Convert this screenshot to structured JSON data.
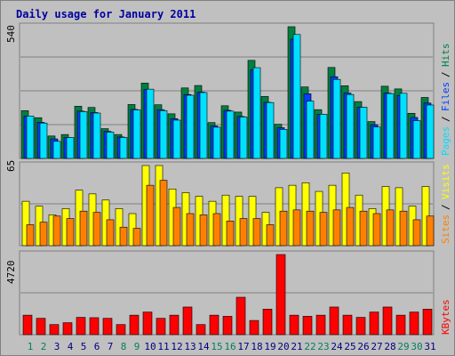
{
  "title": "Daily usage for January 2011",
  "colors": {
    "background": "#C0C0C0",
    "title": "#0000A0",
    "hits": "#008040",
    "files": "#0040FF",
    "pages": "#00E0FF",
    "visits": "#FFFF00",
    "sites": "#FF8000",
    "kbytes": "#FF0000",
    "weekend_day_label": "#00805C",
    "weekday_day_label": "#000080",
    "gridline": "#808080"
  },
  "chart_data": [
    {
      "type": "bar",
      "panel": "top",
      "ymax_label": "540",
      "legend": [
        "Pages",
        "Files",
        "Hits"
      ],
      "categories": [
        "1",
        "2",
        "3",
        "4",
        "5",
        "6",
        "7",
        "8",
        "9",
        "10",
        "11",
        "12",
        "13",
        "14",
        "15",
        "16",
        "17",
        "18",
        "19",
        "20",
        "21",
        "22",
        "23",
        "24",
        "25",
        "26",
        "27",
        "28",
        "29",
        "30",
        "31"
      ],
      "series": [
        {
          "name": "Hits",
          "color": "#008040",
          "values": [
            196,
            167,
            92,
            98,
            214,
            209,
            122,
            98,
            221,
            309,
            220,
            183,
            289,
            299,
            147,
            216,
            190,
            402,
            254,
            140,
            540,
            293,
            200,
            373,
            298,
            233,
            151,
            296,
            285,
            185,
            250
          ]
        },
        {
          "name": "Files",
          "color": "#0040FF",
          "values": [
            174,
            148,
            80,
            86,
            194,
            188,
            111,
            88,
            201,
            283,
            200,
            163,
            262,
            272,
            133,
            197,
            172,
            364,
            230,
            126,
            489,
            265,
            181,
            335,
            268,
            210,
            138,
            268,
            258,
            168,
            227
          ]
        },
        {
          "name": "Pages",
          "color": "#00E0FF",
          "values": [
            174,
            145,
            70,
            86,
            192,
            186,
            108,
            86,
            199,
            284,
            196,
            157,
            259,
            270,
            128,
            194,
            170,
            372,
            229,
            119,
            508,
            235,
            181,
            324,
            262,
            210,
            129,
            266,
            267,
            155,
            219
          ]
        }
      ]
    },
    {
      "type": "bar",
      "panel": "middle",
      "ymax_label": "65",
      "legend": [
        "Sites",
        "Visits"
      ],
      "categories": [
        "1",
        "2",
        "3",
        "4",
        "5",
        "6",
        "7",
        "8",
        "9",
        "10",
        "11",
        "12",
        "13",
        "14",
        "15",
        "16",
        "17",
        "18",
        "19",
        "20",
        "21",
        "22",
        "23",
        "24",
        "25",
        "26",
        "27",
        "28",
        "29",
        "30",
        "31"
      ],
      "series": [
        {
          "name": "Visits",
          "color": "#FFFF00",
          "values": [
            36,
            32,
            25,
            30,
            45,
            42,
            37,
            30,
            26,
            65,
            65,
            46,
            43,
            40,
            36,
            41,
            40,
            40,
            27,
            47,
            49,
            51,
            44,
            49,
            59,
            41,
            30,
            48,
            47,
            32,
            48
          ]
        },
        {
          "name": "Sites",
          "color": "#FF8000",
          "values": [
            17,
            19,
            24,
            22,
            28,
            27,
            21,
            15,
            14,
            49,
            53,
            31,
            26,
            25,
            26,
            20,
            22,
            22,
            17,
            28,
            29,
            28,
            27,
            29,
            31,
            28,
            26,
            29,
            28,
            21,
            24
          ]
        }
      ]
    },
    {
      "type": "bar",
      "panel": "bottom",
      "ymax_label": "4720",
      "legend": [
        "KBytes"
      ],
      "categories": [
        "1",
        "2",
        "3",
        "4",
        "5",
        "6",
        "7",
        "8",
        "9",
        "10",
        "11",
        "12",
        "13",
        "14",
        "15",
        "16",
        "17",
        "18",
        "19",
        "20",
        "21",
        "22",
        "23",
        "24",
        "25",
        "26",
        "27",
        "28",
        "29",
        "30",
        "31"
      ],
      "series": [
        {
          "name": "KBytes",
          "color": "#FF0000",
          "values": [
            1147,
            962,
            593,
            704,
            1018,
            999,
            962,
            593,
            1147,
            1332,
            962,
            1147,
            1628,
            593,
            1147,
            1079,
            2202,
            835,
            1500,
            4720,
            1147,
            1080,
            1147,
            1628,
            1147,
            1018,
            1332,
            1628,
            1147,
            1332,
            1500
          ]
        }
      ]
    }
  ],
  "x_days": [
    "1",
    "2",
    "3",
    "4",
    "5",
    "6",
    "7",
    "8",
    "9",
    "10",
    "11",
    "12",
    "13",
    "14",
    "15",
    "16",
    "17",
    "18",
    "19",
    "20",
    "21",
    "22",
    "23",
    "24",
    "25",
    "26",
    "27",
    "28",
    "29",
    "30",
    "31"
  ],
  "weekend_days": [
    "1",
    "2",
    "8",
    "9",
    "15",
    "16",
    "22",
    "23",
    "29",
    "30"
  ]
}
